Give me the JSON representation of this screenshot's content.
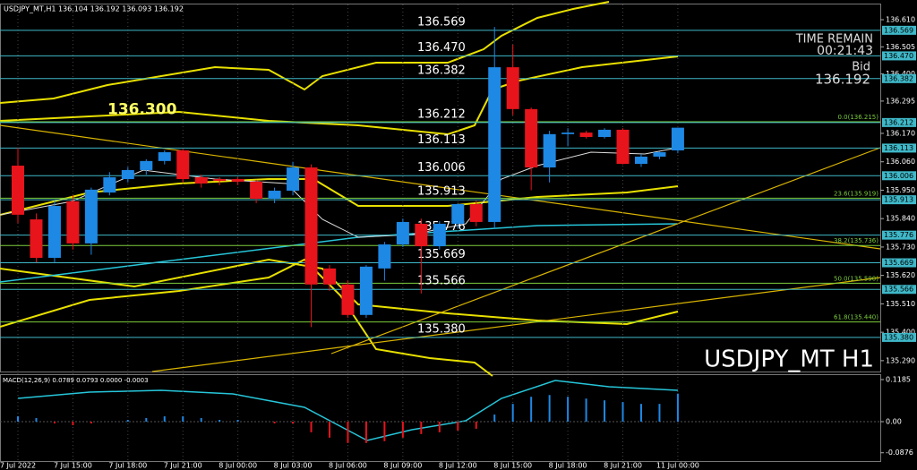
{
  "header": "USDJPY_MT,H1  136.104 136.192 136.093 136.192",
  "chart_data": [
    {
      "type": "candlestick",
      "categories": [
        "7 Jul 2022",
        null,
        null,
        "7 Jul 15:00",
        null,
        null,
        "7 Jul 18:00",
        null,
        null,
        "7 Jul 21:00",
        null,
        null,
        "8 Jul 00:00",
        null,
        null,
        "8 Jul 03:00",
        null,
        null,
        "8 Jul 06:00",
        null,
        null,
        "8 Jul 09:00",
        null,
        null,
        "8 Jul 12:00",
        null,
        null,
        "8 Jul 15:00",
        null,
        null,
        "8 Jul 18:00",
        null,
        null,
        "8 Jul 21:00",
        null,
        null,
        "11 Jul 00:00"
      ],
      "open": [
        136.045,
        135.837,
        135.688,
        135.907,
        135.744,
        135.941,
        135.993,
        136.028,
        136.063,
        136.104,
        136.0,
        135.993,
        135.993,
        135.983,
        135.917,
        135.948,
        136.038,
        135.647,
        135.585,
        135.467,
        135.647,
        135.74,
        135.82,
        135.733,
        135.82,
        135.896,
        135.827,
        136.426,
        136.264,
        136.038,
        136.167,
        136.173,
        136.156,
        136.184,
        136.052,
        136.08,
        136.104
      ],
      "high": [
        136.115,
        135.86,
        135.91,
        135.93,
        135.96,
        136.02,
        136.04,
        136.07,
        136.104,
        136.11,
        136.01,
        136.0,
        136.0,
        135.99,
        135.96,
        136.06,
        136.05,
        135.66,
        135.6,
        135.66,
        135.75,
        135.84,
        135.84,
        135.83,
        135.9,
        135.91,
        136.582,
        136.513,
        136.27,
        136.18,
        136.19,
        136.18,
        136.19,
        136.19,
        136.09,
        136.1,
        136.192
      ],
      "low": [
        135.822,
        135.67,
        135.67,
        135.72,
        135.7,
        135.93,
        135.98,
        136.01,
        136.05,
        135.98,
        135.96,
        135.97,
        135.97,
        135.9,
        135.9,
        135.93,
        135.42,
        135.56,
        135.456,
        135.456,
        135.6,
        135.73,
        135.55,
        135.72,
        135.8,
        135.81,
        135.8,
        136.24,
        135.95,
        135.98,
        136.12,
        136.15,
        136.15,
        136.05,
        136.04,
        136.07,
        136.093
      ],
      "close": [
        135.855,
        135.688,
        135.889,
        135.744,
        135.952,
        136.0,
        136.028,
        136.063,
        136.097,
        135.993,
        135.976,
        135.986,
        135.983,
        135.917,
        135.948,
        136.038,
        135.585,
        135.585,
        135.467,
        135.654,
        135.74,
        135.827,
        135.733,
        135.82,
        135.896,
        135.827,
        136.426,
        136.264,
        136.038,
        136.167,
        136.173,
        136.156,
        136.184,
        136.052,
        136.08,
        136.097,
        136.192
      ],
      "up_color": "#1e88e5",
      "down_color": "#e8141c",
      "ylim": [
        135.248,
        136.669
      ],
      "yticks": [
        {
          "value": 136.61,
          "label": "136.610"
        },
        {
          "value": 136.505,
          "label": "136.505"
        },
        {
          "value": 136.4,
          "label": "136.400"
        },
        {
          "value": 136.295,
          "label": "136.295"
        },
        {
          "value": 136.17,
          "label": "136.170"
        },
        {
          "value": 136.06,
          "label": "136.060"
        },
        {
          "value": 135.95,
          "label": "135.950"
        },
        {
          "value": 135.84,
          "label": "135.840"
        },
        {
          "value": 135.73,
          "label": "135.730"
        },
        {
          "value": 135.62,
          "label": "135.620"
        },
        {
          "value": 135.51,
          "label": "135.510"
        },
        {
          "value": 135.4,
          "label": "135.400"
        },
        {
          "value": 135.29,
          "label": "135.290"
        }
      ],
      "levels": [
        {
          "value": 136.569,
          "label": "136.569"
        },
        {
          "value": 136.47,
          "label": "136.470"
        },
        {
          "value": 136.382,
          "label": "136.382"
        },
        {
          "value": 136.212,
          "label": "136.212"
        },
        {
          "value": 136.113,
          "label": "136.113"
        },
        {
          "value": 136.006,
          "label": "136.006"
        },
        {
          "value": 135.913,
          "label": "135.913"
        },
        {
          "value": 135.776,
          "label": "135.776"
        },
        {
          "value": 135.669,
          "label": "135.669"
        },
        {
          "value": 135.566,
          "label": "135.566"
        },
        {
          "value": 135.38,
          "label": "135.380"
        }
      ],
      "level_color": "#3fb8c8",
      "fib_levels": [
        {
          "value": 136.215,
          "label": "0.0(136.215)"
        },
        {
          "value": 135.919,
          "label": "23.6(135.919)"
        },
        {
          "value": 135.736,
          "label": "38.2(135.736)"
        },
        {
          "value": 135.59,
          "label": "50.0(135.590)"
        },
        {
          "value": 135.44,
          "label": "61.8(135.440)"
        }
      ],
      "fib_color": "#7ccd3c",
      "marker": {
        "value": 136.3,
        "label": "136.300"
      },
      "time_remain_label": "TIME REMAIN",
      "time_remain": "00:21:43",
      "bid_label": "Bid",
      "bid": "136.192",
      "watermark": "USDJPY_MT H1"
    },
    {
      "type": "macd",
      "title": "MACD(12,26,9) 0.0789 0.0793 0.0000 -0.0003",
      "values": [
        0.015,
        0.01,
        -0.005,
        -0.01,
        -0.005,
        0.0,
        0.005,
        0.01,
        0.015,
        0.015,
        0.01,
        0.005,
        0.005,
        0.0,
        -0.005,
        -0.005,
        -0.03,
        -0.045,
        -0.06,
        -0.06,
        -0.055,
        -0.045,
        -0.035,
        -0.03,
        -0.025,
        -0.02,
        0.02,
        0.05,
        0.07,
        0.075,
        0.07,
        0.065,
        0.06,
        0.055,
        0.05,
        0.05,
        0.0789
      ],
      "up_color": "#1e88e5",
      "down_color": "#e8141c",
      "ylim": [
        -0.1135,
        0.1311
      ],
      "yticks": [
        0.1185,
        {
          "value": 0,
          "label": "0.00"
        },
        -0.0876
      ]
    }
  ]
}
